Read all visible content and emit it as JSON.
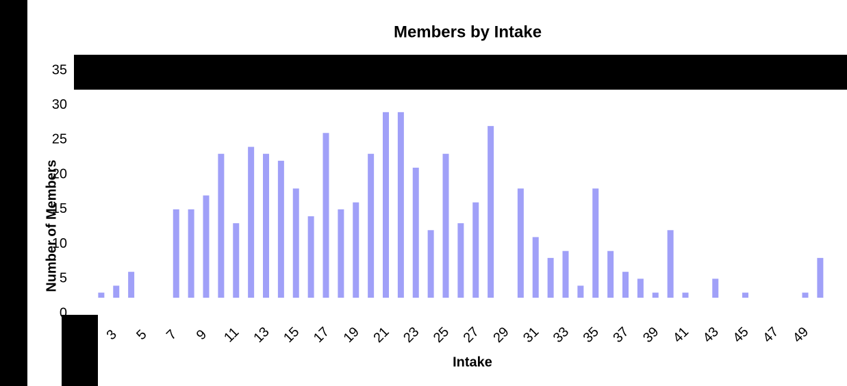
{
  "chart_data": {
    "type": "bar",
    "title": "Members by Intake",
    "xlabel": "Intake",
    "ylabel": "Number of Members",
    "categories": [
      null,
      null,
      "3",
      null,
      "5",
      null,
      "7",
      null,
      "9",
      null,
      "11",
      null,
      "13",
      null,
      "15",
      null,
      "17",
      null,
      "19",
      null,
      "21",
      null,
      "23",
      null,
      "25",
      null,
      "27",
      null,
      "29",
      null,
      "31",
      null,
      "33",
      null,
      "35",
      null,
      "37",
      null,
      "39",
      null,
      "41",
      null,
      "43",
      null,
      "45",
      null,
      "47",
      null,
      "49",
      null
    ],
    "values": [
      0,
      3,
      4,
      6,
      0,
      0,
      15,
      15,
      17,
      23,
      13,
      24,
      23,
      22,
      18,
      14,
      26,
      15,
      16,
      23,
      29,
      29,
      21,
      12,
      23,
      13,
      16,
      27,
      0,
      18,
      11,
      8,
      9,
      4,
      18,
      9,
      6,
      5,
      3,
      12,
      3,
      0,
      5,
      0,
      3,
      0,
      0,
      0,
      3,
      8
    ],
    "color": "#a0a0f8",
    "ylim": [
      0,
      35
    ],
    "yticks": [
      0,
      5,
      10,
      15,
      20,
      25,
      30,
      35
    ],
    "grid": false
  }
}
